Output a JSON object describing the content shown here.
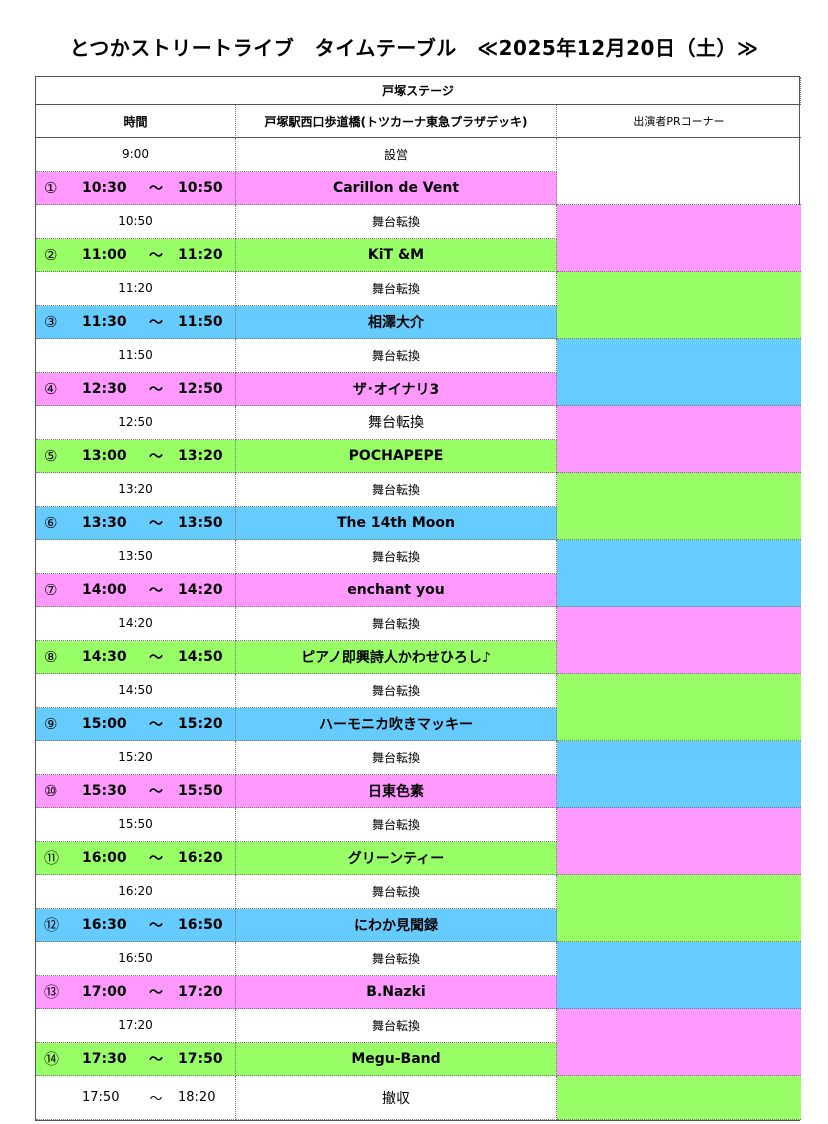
{
  "title": "とつかストリートライブ　タイムテーブル　≪2025年12月20日（土）≫",
  "stage": "戸塚ステージ",
  "headers": {
    "time": "時間",
    "venue": "戸塚駅西口歩道橋(トツカーナ東急プラザデッキ)",
    "pr": "出演者PRコーナー"
  },
  "colors": {
    "pink": "#ff99ff",
    "green": "#99ff66",
    "blue": "#66ccff"
  },
  "setup": {
    "time": "9:00",
    "label": "設営"
  },
  "tilde": "～",
  "performances": [
    {
      "num": "①",
      "start": "10:30",
      "end": "10:50",
      "name": "Carillon de Vent",
      "color": "pink"
    },
    {
      "num": "②",
      "start": "11:00",
      "end": "11:20",
      "name": "KiT &M",
      "color": "green"
    },
    {
      "num": "③",
      "start": "11:30",
      "end": "11:50",
      "name": "相澤大介",
      "color": "blue"
    },
    {
      "num": "④",
      "start": "12:30",
      "end": "12:50",
      "name": "ザ･オイナリ3",
      "color": "pink"
    },
    {
      "num": "⑤",
      "start": "13:00",
      "end": "13:20",
      "name": "POCHAPEPE",
      "color": "green"
    },
    {
      "num": "⑥",
      "start": "13:30",
      "end": "13:50",
      "name": "The 14th Moon",
      "color": "blue"
    },
    {
      "num": "⑦",
      "start": "14:00",
      "end": "14:20",
      "name": "enchant you",
      "color": "pink"
    },
    {
      "num": "⑧",
      "start": "14:30",
      "end": "14:50",
      "name": "ピアノ即興詩人かわせひろし♪",
      "color": "green"
    },
    {
      "num": "⑨",
      "start": "15:00",
      "end": "15:20",
      "name": "ハーモニカ吹きマッキー",
      "color": "blue"
    },
    {
      "num": "⑩",
      "start": "15:30",
      "end": "15:50",
      "name": "日東色素",
      "color": "pink"
    },
    {
      "num": "⑪",
      "start": "16:00",
      "end": "16:20",
      "name": "グリーンティー",
      "color": "green"
    },
    {
      "num": "⑫",
      "start": "16:30",
      "end": "16:50",
      "name": "にわか見聞録",
      "color": "blue"
    },
    {
      "num": "⑬",
      "start": "17:00",
      "end": "17:20",
      "name": "B.Nazki",
      "color": "pink"
    },
    {
      "num": "⑭",
      "start": "17:30",
      "end": "17:50",
      "name": "Megu-Band",
      "color": "green"
    }
  ],
  "changeover_label": "舞台転換",
  "changeovers": [
    "10:50",
    "11:20",
    "11:50",
    "12:50",
    "13:20",
    "13:50",
    "14:20",
    "14:50",
    "15:20",
    "15:50",
    "16:20",
    "16:50",
    "17:20"
  ],
  "teardown": {
    "start": "17:50",
    "end": "18:20",
    "label": "撤収"
  }
}
